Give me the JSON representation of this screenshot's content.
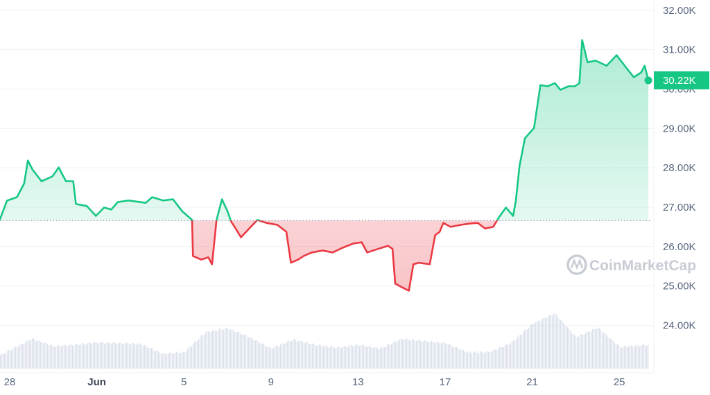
{
  "chart_data": {
    "type": "line",
    "x_tick_labels": [
      "28",
      "Jun",
      "5",
      "9",
      "13",
      "17",
      "21",
      "25"
    ],
    "y_tick_labels": [
      "24.00K",
      "25.00K",
      "26.00K",
      "27.00K",
      "28.00K",
      "29.00K",
      "30.00K",
      "31.00K",
      "32.00K"
    ],
    "y_ticks": [
      24000,
      25000,
      26000,
      27000,
      28000,
      29000,
      30000,
      31000,
      32000
    ],
    "ylim": [
      22900,
      32260
    ],
    "grid": true,
    "y_axis_side": "right",
    "baseline": 26660,
    "current_price_label": "30.22K",
    "watermark": "CoinMarketCap",
    "colors": {
      "up": "#16c784",
      "down": "#ea3943",
      "volume": "#cfd6e4",
      "grid": "#eff2f5",
      "tag": "#16c784"
    },
    "series": [
      {
        "points": [
          [
            "May 27 13:00",
            26675
          ],
          [
            "May 27 21:00",
            27167
          ],
          [
            "May 28 08:00",
            27255
          ],
          [
            "May 28 16:00",
            27605
          ],
          [
            "May 28 20:00",
            28186
          ],
          [
            "May 29 01:00",
            27960
          ],
          [
            "May 29 11:00",
            27660
          ],
          [
            "May 29 23:00",
            27780
          ],
          [
            "May 30 06:00",
            28010
          ],
          [
            "May 30 14:00",
            27660
          ],
          [
            "May 30 22:00",
            27660
          ],
          [
            "May 31 01:00",
            27080
          ],
          [
            "May 31 13:00",
            27030
          ],
          [
            "May 31 23:00",
            26780
          ],
          [
            "Jun 1 08:00",
            26990
          ],
          [
            "Jun 1 16:00",
            26940
          ],
          [
            "Jun 1 23:00",
            27130
          ],
          [
            "Jun 2 11:00",
            27170
          ],
          [
            "Jun 3 06:00",
            27110
          ],
          [
            "Jun 3 13:00",
            27255
          ],
          [
            "Jun 4 01:00",
            27170
          ],
          [
            "Jun 4 12:00",
            27200
          ],
          [
            "Jun 4 22:00",
            26900
          ],
          [
            "Jun 5 04:00",
            26780
          ],
          [
            "Jun 5 09:00",
            26675
          ],
          [
            "Jun 5 10:00",
            25760
          ],
          [
            "Jun 5 19:00",
            25670
          ],
          [
            "Jun 6 03:00",
            25725
          ],
          [
            "Jun 6 07:00",
            25550
          ],
          [
            "Jun 6 12:00",
            26675
          ],
          [
            "Jun 6 18:00",
            27200
          ],
          [
            "Jun 7 00:00",
            26900
          ],
          [
            "Jun 7 04:00",
            26640
          ],
          [
            "Jun 7 09:00",
            26460
          ],
          [
            "Jun 7 15:00",
            26236
          ],
          [
            "Jun 8 00:00",
            26460
          ],
          [
            "Jun 8 09:00",
            26675
          ],
          [
            "Jun 8 19:00",
            26600
          ],
          [
            "Jun 9 07:00",
            26550
          ],
          [
            "Jun 9 17:00",
            26375
          ],
          [
            "Jun 9 22:00",
            25590
          ],
          [
            "Jun 10 06:00",
            25670
          ],
          [
            "Jun 10 12:00",
            25760
          ],
          [
            "Jun 10 21:00",
            25850
          ],
          [
            "Jun 11 09:00",
            25900
          ],
          [
            "Jun 11 20:00",
            25850
          ],
          [
            "Jun 12 07:00",
            25970
          ],
          [
            "Jun 12 19:00",
            26080
          ],
          [
            "Jun 13 04:00",
            26110
          ],
          [
            "Jun 13 10:00",
            25850
          ],
          [
            "Jun 13 22:00",
            25940
          ],
          [
            "Jun 14 09:00",
            26020
          ],
          [
            "Jun 14 14:00",
            25940
          ],
          [
            "Jun 14 17:00",
            25060
          ],
          [
            "Jun 15 00:00",
            24970
          ],
          [
            "Jun 15 08:00",
            24880
          ],
          [
            "Jun 15 13:00",
            25550
          ],
          [
            "Jun 15 19:00",
            25590
          ],
          [
            "Jun 16 07:00",
            25550
          ],
          [
            "Jun 16 13:00",
            26290
          ],
          [
            "Jun 16 18:00",
            26375
          ],
          [
            "Jun 16 22:00",
            26600
          ],
          [
            "Jun 17 06:00",
            26500
          ],
          [
            "Jun 17 17:00",
            26550
          ],
          [
            "Jun 18 05:00",
            26590
          ],
          [
            "Jun 18 12:00",
            26600
          ],
          [
            "Jun 18 20:00",
            26460
          ],
          [
            "Jun 19 05:00",
            26500
          ],
          [
            "Jun 19 11:00",
            26730
          ],
          [
            "Jun 19 19:00",
            26990
          ],
          [
            "Jun 20 03:00",
            26780
          ],
          [
            "Jun 20 06:00",
            27170
          ],
          [
            "Jun 20 10:00",
            28050
          ],
          [
            "Jun 20 16:00",
            28750
          ],
          [
            "Jun 21 02:00",
            29010
          ],
          [
            "Jun 21 09:00",
            30100
          ],
          [
            "Jun 21 17:00",
            30070
          ],
          [
            "Jun 22 01:00",
            30150
          ],
          [
            "Jun 22 07:00",
            29980
          ],
          [
            "Jun 22 16:00",
            30070
          ],
          [
            "Jun 22 23:00",
            30070
          ],
          [
            "Jun 23 04:00",
            30150
          ],
          [
            "Jun 23 07:00",
            31245
          ],
          [
            "Jun 23 13:00",
            30680
          ],
          [
            "Jun 23 22:00",
            30720
          ],
          [
            "Jun 24 10:00",
            30590
          ],
          [
            "Jun 24 21:00",
            30860
          ],
          [
            "Jun 25 09:00",
            30500
          ],
          [
            "Jun 25 16:00",
            30300
          ],
          [
            "Jun 26 00:00",
            30420
          ],
          [
            "Jun 26 04:00",
            30590
          ],
          [
            "Jun 26 08:00",
            30220
          ]
        ]
      }
    ],
    "volume_relative": [
      [
        "May 27 13:00",
        18
      ],
      [
        "May 28",
        25
      ],
      [
        "May 29",
        40
      ],
      [
        "May 30",
        30
      ],
      [
        "May 31",
        32
      ],
      [
        "Jun 1",
        35
      ],
      [
        "Jun 2",
        34
      ],
      [
        "Jun 3",
        33
      ],
      [
        "Jun 4",
        20
      ],
      [
        "Jun 5",
        22
      ],
      [
        "Jun 6",
        49
      ],
      [
        "Jun 7",
        54
      ],
      [
        "Jun 8",
        42
      ],
      [
        "Jun 9",
        27
      ],
      [
        "Jun 10",
        39
      ],
      [
        "Jun 11",
        32
      ],
      [
        "Jun 12",
        28
      ],
      [
        "Jun 13",
        32
      ],
      [
        "Jun 14",
        27
      ],
      [
        "Jun 15",
        40
      ],
      [
        "Jun 16",
        37
      ],
      [
        "Jun 17",
        34
      ],
      [
        "Jun 18",
        22
      ],
      [
        "Jun 19",
        22
      ],
      [
        "Jun 20",
        34
      ],
      [
        "Jun 21",
        60
      ],
      [
        "Jun 22",
        74
      ],
      [
        "Jun 23",
        42
      ],
      [
        "Jun 24",
        55
      ],
      [
        "Jun 25",
        29
      ],
      [
        "Jun 26 08:00",
        32
      ]
    ]
  }
}
